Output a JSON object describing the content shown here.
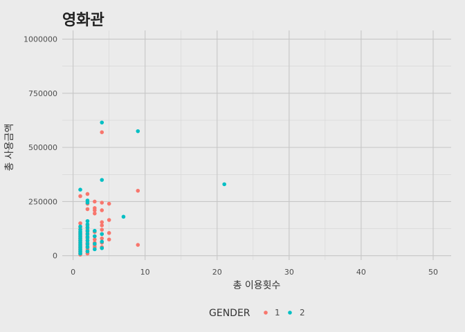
{
  "chart_data": {
    "type": "scatter",
    "title": "영화관",
    "xlabel": "총 이용횟수",
    "ylabel": "총 사용금액",
    "xlim": [
      -1.5,
      52.5
    ],
    "ylim": [
      -20000,
      1040000
    ],
    "x_ticks": [
      0,
      10,
      20,
      30,
      40,
      50
    ],
    "y_ticks": [
      0,
      250000,
      500000,
      750000,
      1000000
    ],
    "grid": true,
    "legend": {
      "title": "GENDER",
      "position": "bottom"
    },
    "series": [
      {
        "name": "1",
        "color": "#F8766D",
        "points": [
          [
            1,
            5000
          ],
          [
            1,
            10000
          ],
          [
            1,
            15000
          ],
          [
            1,
            20000
          ],
          [
            1,
            25000
          ],
          [
            1,
            30000
          ],
          [
            1,
            35000
          ],
          [
            1,
            40000
          ],
          [
            1,
            45000
          ],
          [
            1,
            50000
          ],
          [
            1,
            55000
          ],
          [
            1,
            60000
          ],
          [
            1,
            65000
          ],
          [
            1,
            70000
          ],
          [
            1,
            75000
          ],
          [
            1,
            80000
          ],
          [
            1,
            85000
          ],
          [
            1,
            90000
          ],
          [
            1,
            95000
          ],
          [
            1,
            100000
          ],
          [
            1,
            105000
          ],
          [
            1,
            110000
          ],
          [
            1,
            120000
          ],
          [
            1,
            130000
          ],
          [
            1,
            150000
          ],
          [
            1,
            275000
          ],
          [
            2,
            10000
          ],
          [
            2,
            20000
          ],
          [
            2,
            30000
          ],
          [
            2,
            40000
          ],
          [
            2,
            50000
          ],
          [
            2,
            60000
          ],
          [
            2,
            70000
          ],
          [
            2,
            80000
          ],
          [
            2,
            90000
          ],
          [
            2,
            100000
          ],
          [
            2,
            110000
          ],
          [
            2,
            120000
          ],
          [
            2,
            130000
          ],
          [
            2,
            140000
          ],
          [
            2,
            215000
          ],
          [
            2,
            240000
          ],
          [
            2,
            285000
          ],
          [
            3,
            40000
          ],
          [
            3,
            50000
          ],
          [
            3,
            60000
          ],
          [
            3,
            75000
          ],
          [
            3,
            90000
          ],
          [
            3,
            110000
          ],
          [
            3,
            195000
          ],
          [
            3,
            210000
          ],
          [
            3,
            220000
          ],
          [
            3,
            250000
          ],
          [
            4,
            40000
          ],
          [
            4,
            60000
          ],
          [
            4,
            80000
          ],
          [
            4,
            100000
          ],
          [
            4,
            120000
          ],
          [
            4,
            140000
          ],
          [
            4,
            155000
          ],
          [
            4,
            210000
          ],
          [
            4,
            245000
          ],
          [
            4,
            570000
          ],
          [
            5,
            75000
          ],
          [
            5,
            105000
          ],
          [
            5,
            165000
          ],
          [
            5,
            240000
          ],
          [
            9,
            50000
          ],
          [
            9,
            300000
          ]
        ]
      },
      {
        "name": "2",
        "color": "#00BFC4",
        "points": [
          [
            1,
            10000
          ],
          [
            1,
            20000
          ],
          [
            1,
            30000
          ],
          [
            1,
            40000
          ],
          [
            1,
            50000
          ],
          [
            1,
            60000
          ],
          [
            1,
            70000
          ],
          [
            1,
            80000
          ],
          [
            1,
            90000
          ],
          [
            1,
            100000
          ],
          [
            1,
            110000
          ],
          [
            1,
            120000
          ],
          [
            1,
            135000
          ],
          [
            1,
            305000
          ],
          [
            2,
            20000
          ],
          [
            2,
            40000
          ],
          [
            2,
            55000
          ],
          [
            2,
            70000
          ],
          [
            2,
            85000
          ],
          [
            2,
            100000
          ],
          [
            2,
            115000
          ],
          [
            2,
            130000
          ],
          [
            2,
            145000
          ],
          [
            2,
            160000
          ],
          [
            2,
            245000
          ],
          [
            2,
            255000
          ],
          [
            3,
            30000
          ],
          [
            3,
            55000
          ],
          [
            3,
            90000
          ],
          [
            3,
            115000
          ],
          [
            4,
            35000
          ],
          [
            4,
            65000
          ],
          [
            4,
            100000
          ],
          [
            4,
            350000
          ],
          [
            4,
            615000
          ],
          [
            7,
            180000
          ],
          [
            9,
            575000
          ],
          [
            21,
            330000
          ]
        ]
      }
    ]
  }
}
